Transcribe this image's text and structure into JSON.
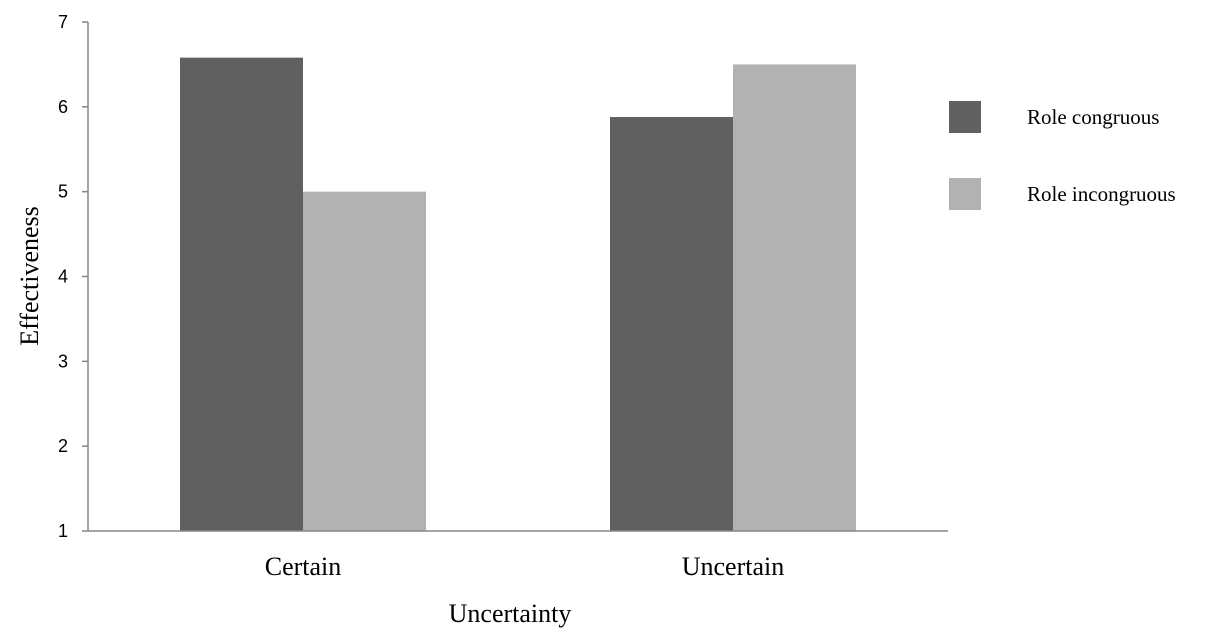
{
  "chart_data": {
    "type": "bar",
    "title": "",
    "xlabel": "Uncertainty",
    "ylabel": "Effectiveness",
    "categories": [
      "Certain",
      "Uncertain"
    ],
    "series": [
      {
        "name": "Role congruous",
        "values": [
          6.58,
          5.88
        ]
      },
      {
        "name": "Role incongruous",
        "values": [
          5.0,
          6.5
        ]
      }
    ],
    "ylim": [
      1,
      7
    ],
    "yticks": [
      "1",
      "2",
      "3",
      "4",
      "5",
      "6",
      "7"
    ],
    "grid": false,
    "legend_position": "right",
    "colors": [
      "#606060",
      "#b2b2b2"
    ],
    "axis_color": "#868686"
  }
}
